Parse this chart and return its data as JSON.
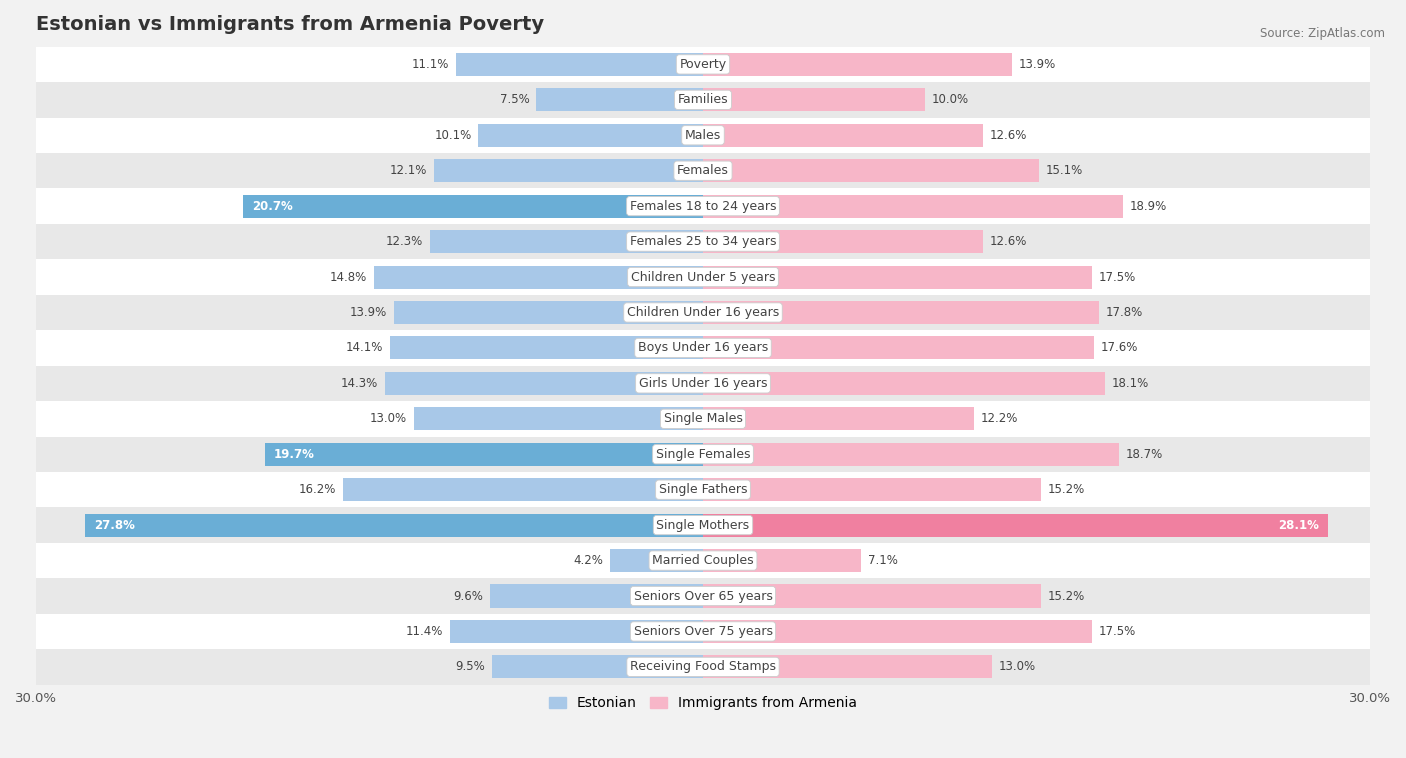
{
  "title": "Estonian vs Immigrants from Armenia Poverty",
  "source": "Source: ZipAtlas.com",
  "categories": [
    "Poverty",
    "Families",
    "Males",
    "Females",
    "Females 18 to 24 years",
    "Females 25 to 34 years",
    "Children Under 5 years",
    "Children Under 16 years",
    "Boys Under 16 years",
    "Girls Under 16 years",
    "Single Males",
    "Single Females",
    "Single Fathers",
    "Single Mothers",
    "Married Couples",
    "Seniors Over 65 years",
    "Seniors Over 75 years",
    "Receiving Food Stamps"
  ],
  "estonian": [
    11.1,
    7.5,
    10.1,
    12.1,
    20.7,
    12.3,
    14.8,
    13.9,
    14.1,
    14.3,
    13.0,
    19.7,
    16.2,
    27.8,
    4.2,
    9.6,
    11.4,
    9.5
  ],
  "armenia": [
    13.9,
    10.0,
    12.6,
    15.1,
    18.9,
    12.6,
    17.5,
    17.8,
    17.6,
    18.1,
    12.2,
    18.7,
    15.2,
    28.1,
    7.1,
    15.2,
    17.5,
    13.0
  ],
  "estonian_color_normal": "#a8c8e8",
  "estonian_color_highlight": "#6aaed6",
  "armenia_color_normal": "#f7b6c8",
  "armenia_color_highlight": "#f080a0",
  "bg_color": "#f2f2f2",
  "row_bg_even": "#ffffff",
  "row_bg_odd": "#e8e8e8",
  "max_value": 30.0,
  "label_fontsize": 9.0,
  "value_fontsize": 8.5,
  "title_fontsize": 14,
  "bar_height": 0.65,
  "highlight_threshold": 19.0
}
